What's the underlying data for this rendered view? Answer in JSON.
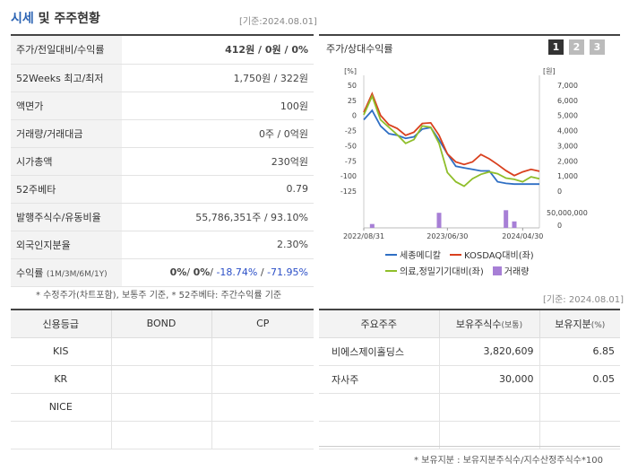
{
  "header": {
    "title_accent": "시세",
    "title_rest": " 및 주주현황",
    "base_date": "[기준:2024.08.01]"
  },
  "quote_rows": [
    {
      "label": "주가/전일대비/수익률",
      "value": "412원 / 0원 / 0%"
    },
    {
      "label": "52Weeks 최고/최저",
      "value": "1,750원 / 322원"
    },
    {
      "label": "액면가",
      "value": "100원"
    },
    {
      "label": "거래량/거래대금",
      "value": "0주 / 0억원"
    },
    {
      "label": "시가총액",
      "value": "230억원"
    },
    {
      "label": "52주베타",
      "value": "0.79"
    },
    {
      "label": "발행주식수/유동비율",
      "value": "55,786,351주 / 93.10%"
    },
    {
      "label": "외국인지분율",
      "value": "2.30%"
    }
  ],
  "returns_row": {
    "label": "수익률",
    "periods": "(1M/3M/6M/1Y)",
    "v1": "0%",
    "v2": "0%",
    "v3": "-18.74%",
    "v4": "-71.95%"
  },
  "quote_note": "* 수정주가(차트포함), 보통주 기준, * 52주베타: 주간수익률 기준",
  "chart_panel": {
    "title": "주가/상대수익률",
    "buttons": [
      "1",
      "2",
      "3"
    ],
    "active_button": "1",
    "button_active_color": "#333333",
    "button_inactive_color": "#bbbbbb",
    "left_unit": "[%]",
    "right_unit": "[원]",
    "left_ticks": [
      "50",
      "25",
      "0",
      "-25",
      "-50",
      "-75",
      "-100",
      "-125"
    ],
    "right_ticks": [
      "7,000",
      "6,000",
      "5,000",
      "4,000",
      "3,000",
      "2,000",
      "1,000",
      "0"
    ],
    "volume_ticks": [
      "50,000,000",
      "0"
    ],
    "x_ticks": [
      "2022/08/31",
      "2023/06/30",
      "2024/04/30"
    ],
    "legend": [
      {
        "name": "세종메디칼",
        "color": "#2f6fc4",
        "kind": "line"
      },
      {
        "name": "KOSDAQ대비(좌)",
        "color": "#d9401e",
        "kind": "line"
      },
      {
        "name": "의료,정밀기기대비(좌)",
        "color": "#8fbe2a",
        "kind": "line"
      },
      {
        "name": "거래량",
        "color": "#a77fd6",
        "kind": "box"
      }
    ]
  },
  "chart_data": {
    "type": "line",
    "x_range": [
      "2022/08/31",
      "2024/07/31"
    ],
    "y_left_range": [
      -125,
      50
    ],
    "y_right_range": [
      0,
      7000
    ],
    "series": [
      {
        "name": "세종메디칼",
        "axis": "right",
        "values": [
          4600,
          5200,
          4200,
          3700,
          3600,
          3400,
          3500,
          4000,
          4100,
          3300,
          2400,
          1600,
          1500,
          1400,
          1300,
          1300,
          600,
          500,
          450,
          450,
          450,
          450
        ]
      },
      {
        "name": "KOSDAQ대비(좌)",
        "axis": "left",
        "values": [
          2,
          32,
          -3,
          -18,
          -24,
          -35,
          -30,
          -16,
          -15,
          -35,
          -65,
          -78,
          -82,
          -78,
          -66,
          -73,
          -82,
          -92,
          -100,
          -94,
          -90,
          -93
        ]
      },
      {
        "name": "의료,정밀기기대비(좌)",
        "axis": "left",
        "values": [
          -2,
          28,
          -10,
          -22,
          -34,
          -48,
          -42,
          -20,
          -22,
          -48,
          -95,
          -110,
          -117,
          -105,
          -98,
          -94,
          -97,
          -104,
          -106,
          -110,
          -102,
          -105
        ]
      }
    ],
    "volume": {
      "name": "거래량",
      "values": [
        0,
        9000000,
        0,
        0,
        0,
        0,
        0,
        0,
        0,
        35000000,
        0,
        0,
        0,
        0,
        0,
        0,
        0,
        41000000,
        15000000,
        0,
        0,
        0
      ]
    }
  },
  "credit": {
    "headers": [
      "신용등급",
      "BOND",
      "CP"
    ],
    "rows": [
      [
        "KIS",
        "",
        ""
      ],
      [
        "KR",
        "",
        ""
      ],
      [
        "NICE",
        "",
        ""
      ],
      [
        "",
        "",
        ""
      ]
    ]
  },
  "holders": {
    "base_date": "[기준: 2024.08.01]",
    "headers": [
      "주요주주",
      "보유주식수",
      "(보통)",
      "보유지분",
      "(%)"
    ],
    "rows": [
      {
        "name": "비에스제이홀딩스",
        "shares": "3,820,609",
        "pct": "6.85"
      },
      {
        "name": "자사주",
        "shares": "30,000",
        "pct": "0.05"
      }
    ],
    "note": "* 보유지분 : 보유지분주식수/지수산정주식수*100"
  }
}
